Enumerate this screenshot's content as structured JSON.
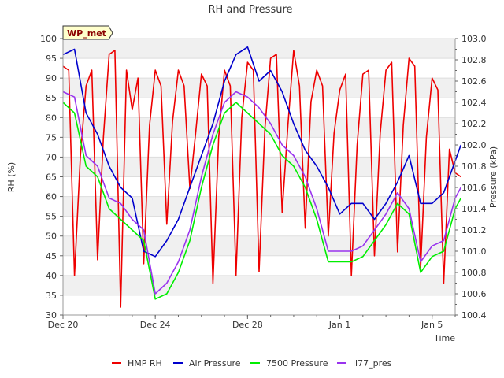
{
  "chart_data": {
    "type": "line",
    "title": "RH and Pressure",
    "station_badge": "WP_met",
    "xlabel": "Time",
    "ylabel_left": "RH (%)",
    "ylabel_right": "Pressure (kPa)",
    "x_start": "2023-12-20",
    "x_end": "2024-01-06",
    "xlim": [
      "2023-12-20",
      "2024-01-06"
    ],
    "ylim_left": [
      30,
      100
    ],
    "ylim_right": [
      100.4,
      103.0
    ],
    "x_ticks": [
      {
        "label": "Dec 20",
        "date": "2023-12-20"
      },
      {
        "label": "Dec 24",
        "date": "2023-12-24"
      },
      {
        "label": "Dec 28",
        "date": "2023-12-28"
      },
      {
        "label": "Jan 1",
        "date": "2024-01-01"
      },
      {
        "label": "Jan 5",
        "date": "2024-01-05"
      }
    ],
    "y_ticks_left": [
      "30",
      "35",
      "40",
      "45",
      "50",
      "55",
      "60",
      "65",
      "70",
      "75",
      "80",
      "85",
      "90",
      "95",
      "100"
    ],
    "y_ticks_right": [
      "100.4",
      "100.6",
      "100.8",
      "101.0",
      "101.2",
      "101.4",
      "101.6",
      "101.8",
      "102.0",
      "102.2",
      "102.4",
      "102.6",
      "102.8",
      "103.0"
    ],
    "grid": true,
    "legend_position": "bottom",
    "series": [
      {
        "name": "HMP RH",
        "axis": "left",
        "color": "#ee0000",
        "x": [
          "2023-12-20 00:00",
          "2023-12-20 06:00",
          "2023-12-20 12:00",
          "2023-12-20 18:00",
          "2023-12-21 00:00",
          "2023-12-21 06:00",
          "2023-12-21 12:00",
          "2023-12-21 18:00",
          "2023-12-22 00:00",
          "2023-12-22 06:00",
          "2023-12-22 12:00",
          "2023-12-22 18:00",
          "2023-12-23 00:00",
          "2023-12-23 06:00",
          "2023-12-23 12:00",
          "2023-12-23 18:00",
          "2023-12-24 00:00",
          "2023-12-24 06:00",
          "2023-12-24 12:00",
          "2023-12-24 18:00",
          "2023-12-25 00:00",
          "2023-12-25 06:00",
          "2023-12-25 12:00",
          "2023-12-25 18:00",
          "2023-12-26 00:00",
          "2023-12-26 06:00",
          "2023-12-26 12:00",
          "2023-12-26 18:00",
          "2023-12-27 00:00",
          "2023-12-27 06:00",
          "2023-12-27 12:00",
          "2023-12-27 18:00",
          "2023-12-28 00:00",
          "2023-12-28 06:00",
          "2023-12-28 12:00",
          "2023-12-28 18:00",
          "2023-12-29 00:00",
          "2023-12-29 06:00",
          "2023-12-29 12:00",
          "2023-12-29 18:00",
          "2023-12-30 00:00",
          "2023-12-30 06:00",
          "2023-12-30 12:00",
          "2023-12-30 18:00",
          "2023-12-31 00:00",
          "2023-12-31 06:00",
          "2023-12-31 12:00",
          "2023-12-31 18:00",
          "2024-01-01 00:00",
          "2024-01-01 06:00",
          "2024-01-01 12:00",
          "2024-01-01 18:00",
          "2024-01-02 00:00",
          "2024-01-02 06:00",
          "2024-01-02 12:00",
          "2024-01-02 18:00",
          "2024-01-03 00:00",
          "2024-01-03 06:00",
          "2024-01-03 12:00",
          "2024-01-03 18:00",
          "2024-01-04 00:00",
          "2024-01-04 06:00",
          "2024-01-04 12:00",
          "2024-01-04 18:00",
          "2024-01-05 00:00",
          "2024-01-05 06:00",
          "2024-01-05 12:00",
          "2024-01-05 18:00",
          "2024-01-06 00:00",
          "2024-01-06 06:00"
        ],
        "values": [
          93,
          92,
          40,
          70,
          88,
          92,
          44,
          75,
          96,
          97,
          32,
          92,
          82,
          90,
          43,
          78,
          92,
          88,
          53,
          79,
          92,
          88,
          62,
          76,
          91,
          88,
          38,
          75,
          92,
          88,
          40,
          80,
          94,
          92,
          41,
          77,
          95,
          96,
          56,
          78,
          97,
          88,
          52,
          84,
          92,
          88,
          50,
          76,
          87,
          91,
          40,
          73,
          91,
          92,
          45,
          76,
          92,
          94,
          46,
          78,
          95,
          93,
          42,
          75,
          90,
          87,
          38,
          72,
          66,
          65
        ]
      },
      {
        "name": "Air Pressure",
        "axis": "right",
        "color": "#0000cc",
        "x": [
          "2023-12-20 00:00",
          "2023-12-20 12:00",
          "2023-12-21 00:00",
          "2023-12-21 12:00",
          "2023-12-22 00:00",
          "2023-12-22 12:00",
          "2023-12-23 00:00",
          "2023-12-23 12:00",
          "2023-12-24 00:00",
          "2023-12-24 12:00",
          "2023-12-25 00:00",
          "2023-12-25 12:00",
          "2023-12-26 00:00",
          "2023-12-26 12:00",
          "2023-12-27 00:00",
          "2023-12-27 12:00",
          "2023-12-28 00:00",
          "2023-12-28 12:00",
          "2023-12-29 00:00",
          "2023-12-29 12:00",
          "2023-12-30 00:00",
          "2023-12-30 12:00",
          "2023-12-31 00:00",
          "2023-12-31 12:00",
          "2024-01-01 00:00",
          "2024-01-01 12:00",
          "2024-01-02 00:00",
          "2024-01-02 12:00",
          "2024-01-03 00:00",
          "2024-01-03 12:00",
          "2024-01-04 00:00",
          "2024-01-04 12:00",
          "2024-01-05 00:00",
          "2024-01-05 12:00",
          "2024-01-06 00:00",
          "2024-01-06 06:00"
        ],
        "values": [
          102.85,
          102.9,
          102.3,
          102.1,
          101.8,
          101.6,
          101.5,
          101.0,
          100.95,
          101.1,
          101.3,
          101.6,
          101.9,
          102.2,
          102.6,
          102.85,
          102.92,
          102.6,
          102.7,
          102.5,
          102.2,
          101.95,
          101.8,
          101.6,
          101.35,
          101.45,
          101.45,
          101.3,
          101.45,
          101.65,
          101.9,
          101.45,
          101.45,
          101.55,
          101.85,
          102.0
        ]
      },
      {
        "name": "7500 Pressure",
        "axis": "right",
        "color": "#00ee00",
        "x": [
          "2023-12-20 00:00",
          "2023-12-20 12:00",
          "2023-12-21 00:00",
          "2023-12-21 12:00",
          "2023-12-22 00:00",
          "2023-12-22 12:00",
          "2023-12-23 00:00",
          "2023-12-23 12:00",
          "2023-12-24 00:00",
          "2023-12-24 12:00",
          "2023-12-25 00:00",
          "2023-12-25 12:00",
          "2023-12-26 00:00",
          "2023-12-26 12:00",
          "2023-12-27 00:00",
          "2023-12-27 12:00",
          "2023-12-28 00:00",
          "2023-12-28 12:00",
          "2023-12-29 00:00",
          "2023-12-29 12:00",
          "2023-12-30 00:00",
          "2023-12-30 12:00",
          "2023-12-31 00:00",
          "2023-12-31 12:00",
          "2024-01-01 00:00",
          "2024-01-01 12:00",
          "2024-01-02 00:00",
          "2024-01-02 12:00",
          "2024-01-03 00:00",
          "2024-01-03 12:00",
          "2024-01-04 00:00",
          "2024-01-04 12:00",
          "2024-01-05 00:00",
          "2024-01-05 12:00",
          "2024-01-06 00:00",
          "2024-01-06 06:00"
        ],
        "values": [
          102.4,
          102.3,
          101.8,
          101.7,
          101.4,
          101.3,
          101.2,
          101.1,
          100.55,
          100.6,
          100.8,
          101.1,
          101.6,
          102.0,
          102.3,
          102.4,
          102.3,
          102.2,
          102.1,
          101.9,
          101.8,
          101.6,
          101.3,
          100.9,
          100.9,
          100.9,
          100.95,
          101.1,
          101.25,
          101.45,
          101.35,
          100.8,
          100.95,
          101.0,
          101.4,
          101.5
        ]
      },
      {
        "name": "li77_pres",
        "axis": "right",
        "color": "#9933ee",
        "x": [
          "2023-12-20 00:00",
          "2023-12-20 12:00",
          "2023-12-21 00:00",
          "2023-12-21 12:00",
          "2023-12-22 00:00",
          "2023-12-22 12:00",
          "2023-12-23 00:00",
          "2023-12-23 12:00",
          "2023-12-24 00:00",
          "2023-12-24 12:00",
          "2023-12-25 00:00",
          "2023-12-25 12:00",
          "2023-12-26 00:00",
          "2023-12-26 12:00",
          "2023-12-27 00:00",
          "2023-12-27 12:00",
          "2023-12-28 00:00",
          "2023-12-28 12:00",
          "2023-12-29 00:00",
          "2023-12-29 12:00",
          "2023-12-30 00:00",
          "2023-12-30 12:00",
          "2023-12-31 00:00",
          "2023-12-31 12:00",
          "2024-01-01 00:00",
          "2024-01-01 12:00",
          "2024-01-02 00:00",
          "2024-01-02 12:00",
          "2024-01-03 00:00",
          "2024-01-03 12:00",
          "2024-01-04 00:00",
          "2024-01-04 12:00",
          "2024-01-05 00:00",
          "2024-01-05 12:00",
          "2024-01-06 00:00",
          "2024-01-06 06:00"
        ],
        "values": [
          102.5,
          102.45,
          101.9,
          101.8,
          101.5,
          101.45,
          101.3,
          101.2,
          100.6,
          100.7,
          100.9,
          101.2,
          101.7,
          102.1,
          102.4,
          102.5,
          102.45,
          102.35,
          102.2,
          102.0,
          101.9,
          101.7,
          101.4,
          101.0,
          101.0,
          101.0,
          101.05,
          101.2,
          101.35,
          101.55,
          101.4,
          100.9,
          101.05,
          101.1,
          101.5,
          101.6
        ]
      }
    ]
  }
}
